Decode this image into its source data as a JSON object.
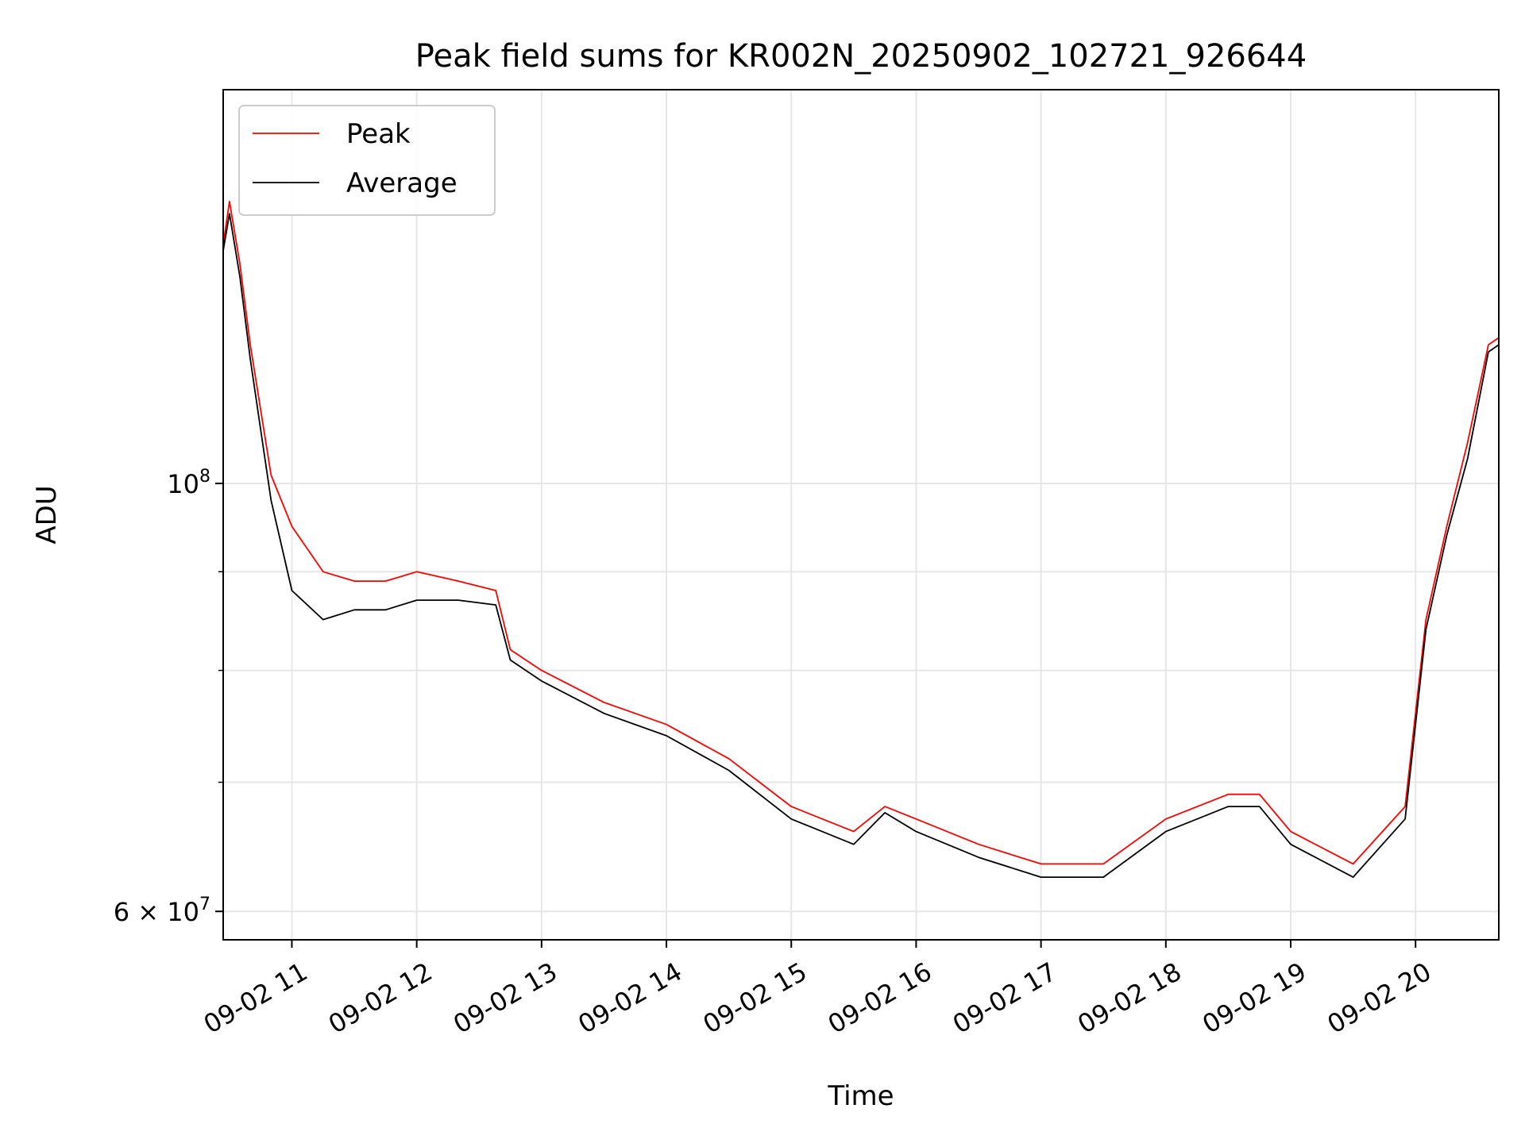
{
  "chart_data": {
    "type": "line",
    "title": "Peak field sums for KR002N_20250902_102721_926644",
    "xlabel": "Time",
    "ylabel": "ADU",
    "yscale": "log",
    "grid": true,
    "legend_position": "upper-left",
    "x_range": [
      "09-02 10:27",
      "09-02 20:40"
    ],
    "y_range": [
      58000000,
      160000000
    ],
    "x_ticks": [
      "09-02 11",
      "09-02 12",
      "09-02 13",
      "09-02 14",
      "09-02 15",
      "09-02 16",
      "09-02 17",
      "09-02 18",
      "09-02 19",
      "09-02 20"
    ],
    "y_ticks": [
      {
        "value": 100000000,
        "label_base": "10",
        "label_exp": "8"
      },
      {
        "value": 60000000,
        "label_base": "6 × 10",
        "label_exp": "7"
      }
    ],
    "y_minor_ticks": [
      70000000,
      80000000,
      90000000
    ],
    "series": [
      {
        "name": "Peak",
        "color": "#ff0000",
        "x": [
          "09-02 10:27",
          "09-02 10:30",
          "09-02 10:35",
          "09-02 10:40",
          "09-02 10:50",
          "09-02 11:00",
          "09-02 11:15",
          "09-02 11:30",
          "09-02 11:45",
          "09-02 12:00",
          "09-02 12:20",
          "09-02 12:38",
          "09-02 12:45",
          "09-02 13:00",
          "09-02 13:30",
          "09-02 14:00",
          "09-02 14:30",
          "09-02 15:00",
          "09-02 15:30",
          "09-02 15:45",
          "09-02 16:00",
          "09-02 16:30",
          "09-02 17:00",
          "09-02 17:30",
          "09-02 18:00",
          "09-02 18:30",
          "09-02 18:45",
          "09-02 19:00",
          "09-02 19:30",
          "09-02 19:55",
          "09-02 20:05",
          "09-02 20:15",
          "09-02 20:25",
          "09-02 20:35",
          "09-02 20:40"
        ],
        "y": [
          133000000,
          140000000,
          130000000,
          118000000,
          101000000,
          95000000,
          90000000,
          89000000,
          89000000,
          90000000,
          89000000,
          88000000,
          82000000,
          80000000,
          77000000,
          75000000,
          72000000,
          68000000,
          66000000,
          68000000,
          67000000,
          65000000,
          63500000,
          63500000,
          67000000,
          69000000,
          69000000,
          66000000,
          63500000,
          68000000,
          85000000,
          95000000,
          105000000,
          118000000,
          119000000
        ]
      },
      {
        "name": "Average",
        "color": "#000000",
        "x": [
          "09-02 10:27",
          "09-02 10:30",
          "09-02 10:35",
          "09-02 10:40",
          "09-02 10:50",
          "09-02 11:00",
          "09-02 11:15",
          "09-02 11:30",
          "09-02 11:45",
          "09-02 12:00",
          "09-02 12:20",
          "09-02 12:38",
          "09-02 12:45",
          "09-02 13:00",
          "09-02 13:30",
          "09-02 14:00",
          "09-02 14:30",
          "09-02 15:00",
          "09-02 15:30",
          "09-02 15:45",
          "09-02 16:00",
          "09-02 16:30",
          "09-02 17:00",
          "09-02 17:30",
          "09-02 18:00",
          "09-02 18:30",
          "09-02 18:45",
          "09-02 19:00",
          "09-02 19:30",
          "09-02 19:55",
          "09-02 20:05",
          "09-02 20:15",
          "09-02 20:25",
          "09-02 20:35",
          "09-02 20:40"
        ],
        "y": [
          132000000,
          138000000,
          128000000,
          116000000,
          98000000,
          88000000,
          85000000,
          86000000,
          86000000,
          87000000,
          87000000,
          86500000,
          81000000,
          79000000,
          76000000,
          74000000,
          71000000,
          67000000,
          65000000,
          67500000,
          66000000,
          64000000,
          62500000,
          62500000,
          66000000,
          68000000,
          68000000,
          65000000,
          62500000,
          67000000,
          84000000,
          94000000,
          103000000,
          117000000,
          118000000
        ]
      }
    ]
  }
}
